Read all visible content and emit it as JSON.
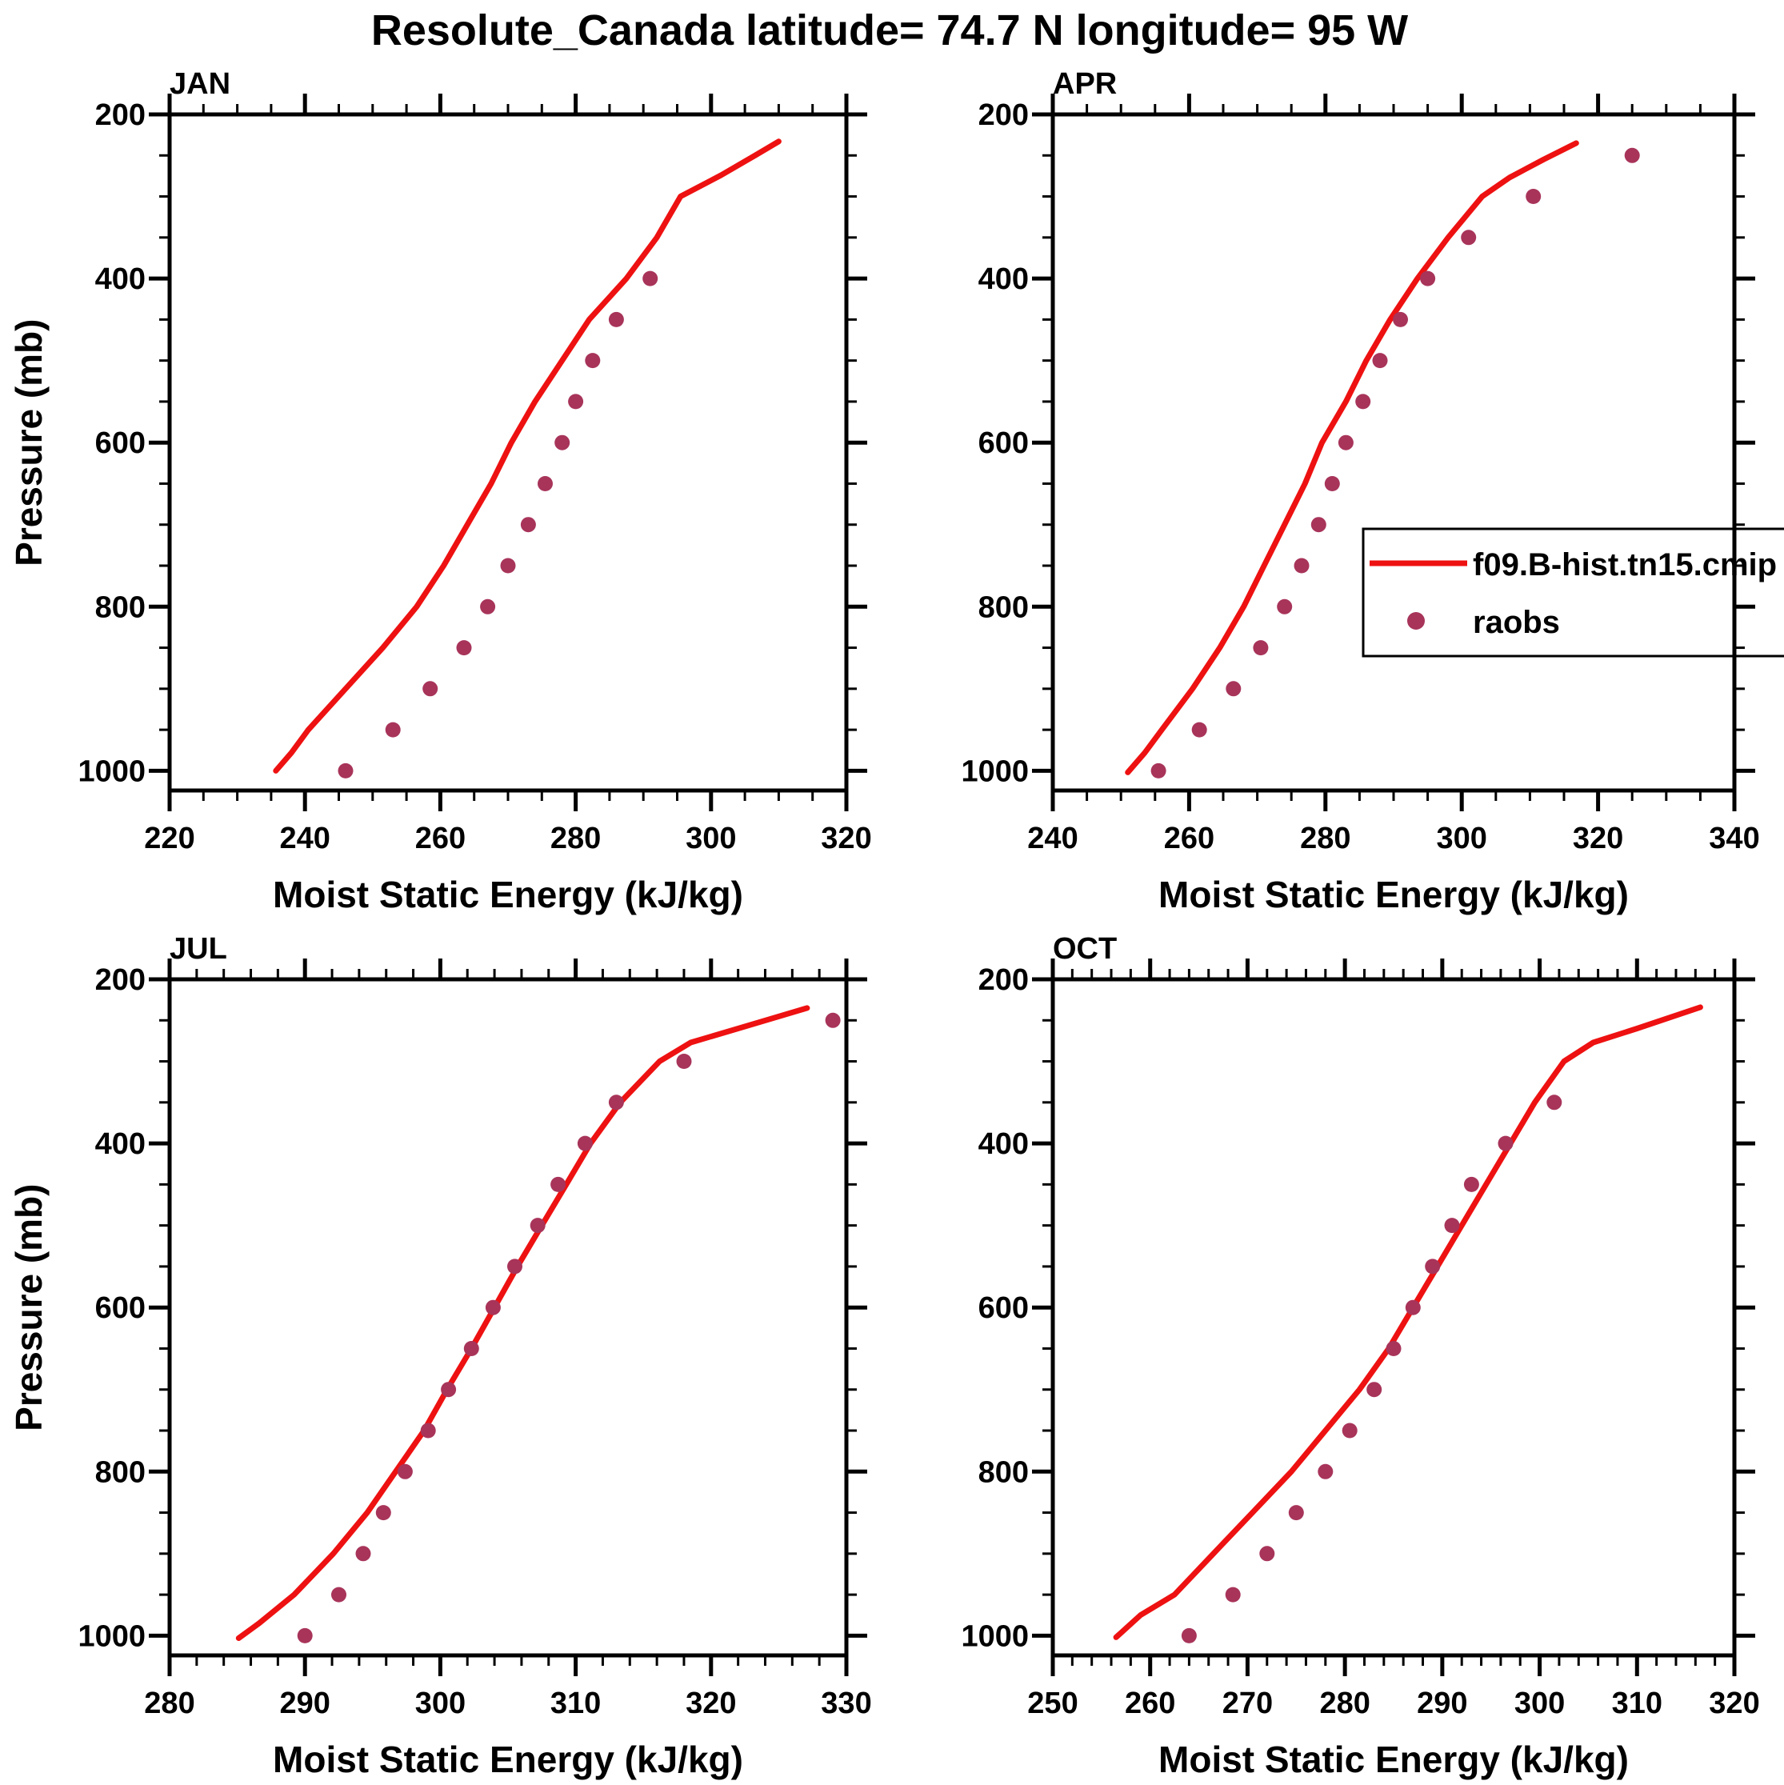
{
  "title": "Resolute_Canada  latitude= 74.7 N longitude= 95 W",
  "colors": {
    "model_line": "#ee1111",
    "raobs_dot": "#a8345a",
    "axis": "#000000",
    "background": "#ffffff"
  },
  "legend": {
    "line_label": "f09.B-hist.tn15.cmip",
    "dot_label": "raobs"
  },
  "chart_data": [
    {
      "type": "line",
      "panel": "JAN",
      "xlabel": "Moist Static Energy (kJ/kg)",
      "ylabel": "Pressure (mb)",
      "xlim": [
        220,
        320
      ],
      "ylim": [
        1024,
        200
      ],
      "x_ticks": [
        220,
        240,
        260,
        280,
        300,
        320
      ],
      "x_minor_step": 5,
      "y_ticks": [
        200,
        400,
        600,
        800,
        1000
      ],
      "y_minor_step": 50,
      "series": [
        {
          "name": "f09.B-hist.tn15.cmip",
          "type": "line",
          "color": "#ee1111",
          "points": [
            [
              235.7,
              1000
            ],
            [
              238,
              978
            ],
            [
              240.5,
              950
            ],
            [
              246,
              900
            ],
            [
              251.5,
              850
            ],
            [
              256.5,
              800
            ],
            [
              260.5,
              750
            ],
            [
              264,
              700
            ],
            [
              267.5,
              650
            ],
            [
              270.5,
              600
            ],
            [
              274,
              550
            ],
            [
              278,
              500
            ],
            [
              282,
              450
            ],
            [
              287.5,
              400
            ],
            [
              292,
              350
            ],
            [
              295.5,
              300
            ],
            [
              301.5,
              274
            ],
            [
              306.5,
              250
            ],
            [
              310,
              233
            ]
          ]
        },
        {
          "name": "raobs",
          "type": "scatter",
          "color": "#a8345a",
          "points": [
            [
              246,
              1000
            ],
            [
              253,
              950
            ],
            [
              258.5,
              900
            ],
            [
              263.5,
              850
            ],
            [
              267,
              800
            ],
            [
              270,
              750
            ],
            [
              273,
              700
            ],
            [
              275.5,
              650
            ],
            [
              278,
              600
            ],
            [
              280,
              550
            ],
            [
              282.5,
              500
            ],
            [
              286,
              450
            ],
            [
              291,
              400
            ]
          ]
        }
      ]
    },
    {
      "type": "line",
      "panel": "APR",
      "xlabel": "Moist Static Energy (kJ/kg)",
      "ylabel": "Pressure (mb)",
      "xlim": [
        240,
        340
      ],
      "ylim": [
        1024,
        200
      ],
      "x_ticks": [
        240,
        260,
        280,
        300,
        320,
        340
      ],
      "x_minor_step": 5,
      "y_ticks": [
        200,
        400,
        600,
        800,
        1000
      ],
      "y_minor_step": 50,
      "series": [
        {
          "name": "f09.B-hist.tn15.cmip",
          "type": "line",
          "color": "#ee1111",
          "points": [
            [
              251,
              1002
            ],
            [
              253.5,
              978
            ],
            [
              256,
              950
            ],
            [
              260.5,
              900
            ],
            [
              264.5,
              850
            ],
            [
              268,
              800
            ],
            [
              271,
              750
            ],
            [
              274,
              700
            ],
            [
              277,
              650
            ],
            [
              279.5,
              600
            ],
            [
              283,
              550
            ],
            [
              286,
              500
            ],
            [
              289.5,
              450
            ],
            [
              293.5,
              400
            ],
            [
              298,
              350
            ],
            [
              303,
              300
            ],
            [
              307,
              277
            ],
            [
              312,
              255
            ],
            [
              316.8,
              235
            ]
          ]
        },
        {
          "name": "raobs",
          "type": "scatter",
          "color": "#a8345a",
          "points": [
            [
              255.5,
              1000
            ],
            [
              261.5,
              950
            ],
            [
              266.5,
              900
            ],
            [
              270.5,
              850
            ],
            [
              274,
              800
            ],
            [
              276.5,
              750
            ],
            [
              279,
              700
            ],
            [
              281,
              650
            ],
            [
              283,
              600
            ],
            [
              285.5,
              550
            ],
            [
              288,
              500
            ],
            [
              291,
              450
            ],
            [
              295,
              400
            ],
            [
              301,
              350
            ],
            [
              310.5,
              300
            ],
            [
              325,
              250
            ]
          ]
        }
      ]
    },
    {
      "type": "line",
      "panel": "JUL",
      "xlabel": "Moist Static Energy (kJ/kg)",
      "ylabel": "Pressure (mb)",
      "xlim": [
        280,
        330
      ],
      "ylim": [
        1024,
        200
      ],
      "x_ticks": [
        280,
        290,
        300,
        310,
        320,
        330
      ],
      "x_minor_step": 2,
      "y_ticks": [
        200,
        400,
        600,
        800,
        1000
      ],
      "y_minor_step": 50,
      "series": [
        {
          "name": "f09.B-hist.tn15.cmip",
          "type": "line",
          "color": "#ee1111",
          "points": [
            [
              285.1,
              1003
            ],
            [
              286.6,
              985
            ],
            [
              289.2,
              950
            ],
            [
              292.1,
              900
            ],
            [
              294.6,
              850
            ],
            [
              296.7,
              800
            ],
            [
              298.8,
              750
            ],
            [
              300.5,
              700
            ],
            [
              302.3,
              650
            ],
            [
              304,
              600
            ],
            [
              305.7,
              550
            ],
            [
              307.5,
              500
            ],
            [
              309.3,
              450
            ],
            [
              311.1,
              400
            ],
            [
              313.3,
              350
            ],
            [
              316.2,
              300
            ],
            [
              318.5,
              277
            ],
            [
              322,
              260
            ],
            [
              327.1,
              235
            ]
          ]
        },
        {
          "name": "raobs",
          "type": "scatter",
          "color": "#a8345a",
          "points": [
            [
              290,
              1000
            ],
            [
              292.5,
              950
            ],
            [
              294.3,
              900
            ],
            [
              295.8,
              850
            ],
            [
              297.4,
              800
            ],
            [
              299.1,
              750
            ],
            [
              300.6,
              700
            ],
            [
              302.3,
              650
            ],
            [
              303.9,
              600
            ],
            [
              305.5,
              550
            ],
            [
              307.2,
              500
            ],
            [
              308.7,
              450
            ],
            [
              310.7,
              400
            ],
            [
              313,
              350
            ],
            [
              318,
              300
            ],
            [
              329,
              250
            ]
          ]
        }
      ]
    },
    {
      "type": "line",
      "panel": "OCT",
      "xlabel": "Moist Static Energy (kJ/kg)",
      "ylabel": "Pressure (mb)",
      "xlim": [
        250,
        320
      ],
      "ylim": [
        1024,
        200
      ],
      "x_ticks": [
        250,
        260,
        270,
        280,
        290,
        300,
        310,
        320
      ],
      "x_minor_step": 2,
      "y_ticks": [
        200,
        400,
        600,
        800,
        1000
      ],
      "y_minor_step": 50,
      "series": [
        {
          "name": "f09.B-hist.tn15.cmip",
          "type": "line",
          "color": "#ee1111",
          "points": [
            [
              256.5,
              1002
            ],
            [
              259,
              975
            ],
            [
              262.5,
              950
            ],
            [
              266.5,
              900
            ],
            [
              270.5,
              850
            ],
            [
              274.5,
              800
            ],
            [
              278,
              750
            ],
            [
              281.5,
              700
            ],
            [
              284.5,
              650
            ],
            [
              287,
              600
            ],
            [
              289.5,
              550
            ],
            [
              292,
              500
            ],
            [
              294.5,
              450
            ],
            [
              297,
              400
            ],
            [
              299.5,
              350
            ],
            [
              302.5,
              300
            ],
            [
              305.5,
              277
            ],
            [
              310,
              260
            ],
            [
              316.5,
              234
            ]
          ]
        },
        {
          "name": "raobs",
          "type": "scatter",
          "color": "#a8345a",
          "points": [
            [
              264,
              1000
            ],
            [
              268.5,
              950
            ],
            [
              272,
              900
            ],
            [
              275,
              850
            ],
            [
              278,
              800
            ],
            [
              280.5,
              750
            ],
            [
              283,
              700
            ],
            [
              285,
              650
            ],
            [
              287,
              600
            ],
            [
              289,
              550
            ],
            [
              291,
              500
            ],
            [
              293,
              450
            ],
            [
              296.5,
              400
            ],
            [
              301.5,
              350
            ]
          ]
        }
      ]
    }
  ]
}
